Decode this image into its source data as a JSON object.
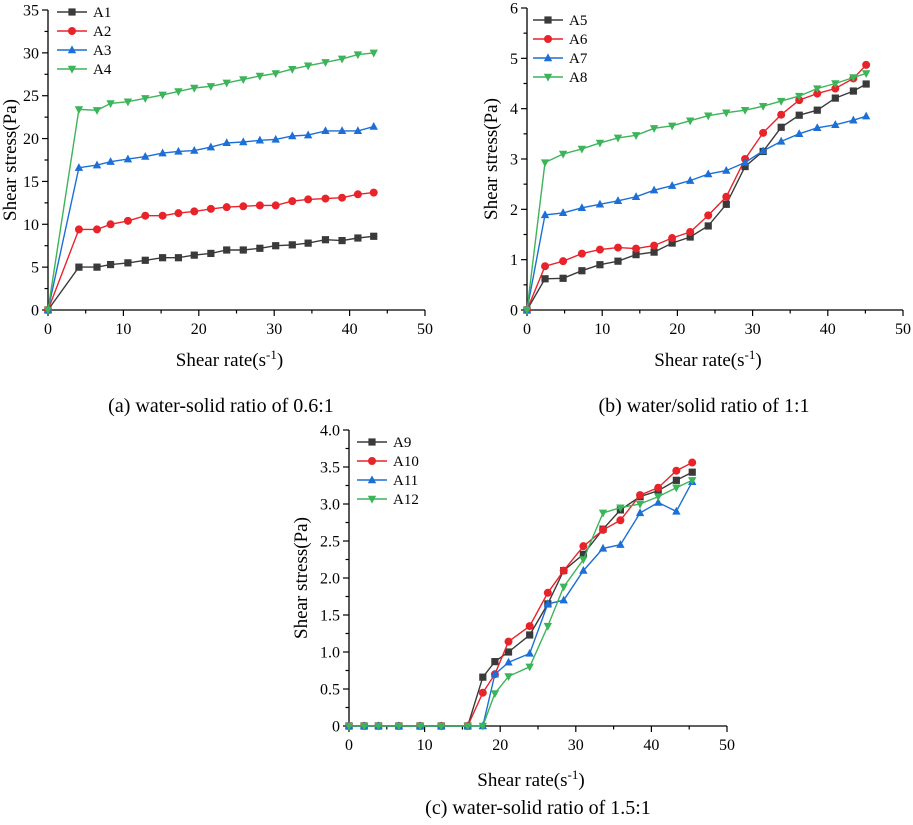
{
  "figure": {
    "captions": [
      "(a) water-solid ratio of 0.6:1",
      "(b) water/solid ratio of 1:1",
      "(c) water-solid ratio of 1.5:1"
    ]
  },
  "chart_data": [
    {
      "type": "line",
      "id": "a",
      "caption": "(a) water-solid ratio of 0.6:1",
      "xlabel": "Shear rate(s-1)",
      "ylabel": "Shear stress(Pa)",
      "xlim": [
        0,
        50
      ],
      "ylim": [
        0,
        35
      ],
      "xticks": [
        0,
        10,
        20,
        30,
        40,
        50
      ],
      "yticks": [
        0,
        5,
        10,
        15,
        20,
        25,
        30,
        35
      ],
      "ytick_labels": [
        "0",
        "5",
        "10",
        "15",
        "20",
        "25",
        "30",
        "35"
      ],
      "legend": "top-left",
      "x": [
        0,
        4.1,
        6.5,
        8.3,
        10.6,
        12.9,
        15.2,
        17.3,
        19.4,
        21.6,
        23.7,
        25.9,
        28.1,
        30.2,
        32.4,
        34.5,
        36.8,
        39.0,
        41.1,
        43.2
      ],
      "series": [
        {
          "name": "A1",
          "color": "#3a3a3a",
          "marker": "square",
          "values": [
            0,
            5.0,
            5.0,
            5.3,
            5.5,
            5.8,
            6.1,
            6.1,
            6.4,
            6.6,
            7.0,
            7.0,
            7.2,
            7.5,
            7.6,
            7.8,
            8.2,
            8.1,
            8.4,
            8.6
          ]
        },
        {
          "name": "A2",
          "color": "#e8232a",
          "marker": "circle",
          "values": [
            0,
            9.4,
            9.4,
            10.0,
            10.4,
            11.0,
            11.0,
            11.3,
            11.5,
            11.8,
            12.0,
            12.1,
            12.2,
            12.2,
            12.7,
            12.9,
            13.0,
            13.1,
            13.5,
            13.7
          ]
        },
        {
          "name": "A3",
          "color": "#1b6fd6",
          "marker": "triangle-up",
          "values": [
            0,
            16.6,
            16.9,
            17.3,
            17.6,
            17.9,
            18.3,
            18.5,
            18.6,
            19.0,
            19.5,
            19.6,
            19.8,
            19.9,
            20.3,
            20.4,
            20.9,
            20.9,
            20.9,
            21.4
          ]
        },
        {
          "name": "A4",
          "color": "#3cb45a",
          "marker": "triangle-down",
          "values": [
            0,
            23.4,
            23.3,
            24.1,
            24.3,
            24.7,
            25.1,
            25.5,
            25.9,
            26.1,
            26.5,
            26.9,
            27.3,
            27.6,
            28.1,
            28.5,
            28.9,
            29.3,
            29.8,
            30.0
          ]
        }
      ]
    },
    {
      "type": "line",
      "id": "b",
      "caption": "(b) water/solid ratio of 1:1",
      "xlabel": "Shear rate(s-1)",
      "ylabel": "Shear stress(Pa)",
      "xlim": [
        0,
        50
      ],
      "ylim": [
        0,
        6
      ],
      "xticks": [
        0,
        10,
        20,
        30,
        40,
        50
      ],
      "yticks": [
        0,
        1,
        2,
        3,
        4,
        5,
        6
      ],
      "ytick_labels": [
        "0",
        "1",
        "2",
        "3",
        "4",
        "5",
        "6"
      ],
      "legend": "top-left",
      "x": [
        0,
        2.4,
        4.8,
        7.3,
        9.7,
        12.1,
        14.5,
        16.9,
        19.3,
        21.7,
        24.1,
        26.5,
        29.0,
        31.4,
        33.8,
        36.2,
        38.6,
        41.0,
        43.4,
        45.1
      ],
      "series": [
        {
          "name": "A5",
          "color": "#3a3a3a",
          "marker": "square",
          "values": [
            0,
            0.62,
            0.63,
            0.78,
            0.9,
            0.97,
            1.1,
            1.15,
            1.33,
            1.45,
            1.67,
            2.1,
            2.85,
            3.15,
            3.63,
            3.87,
            3.97,
            4.21,
            4.35,
            4.49
          ]
        },
        {
          "name": "A6",
          "color": "#e8232a",
          "marker": "circle",
          "values": [
            0,
            0.87,
            0.97,
            1.12,
            1.2,
            1.24,
            1.22,
            1.28,
            1.43,
            1.55,
            1.88,
            2.25,
            3.0,
            3.52,
            3.88,
            4.17,
            4.3,
            4.4,
            4.6,
            4.87
          ]
        },
        {
          "name": "A7",
          "color": "#1b6fd6",
          "marker": "triangle-up",
          "values": [
            0,
            1.89,
            1.93,
            2.03,
            2.1,
            2.17,
            2.25,
            2.38,
            2.47,
            2.57,
            2.7,
            2.77,
            2.93,
            3.16,
            3.35,
            3.5,
            3.62,
            3.68,
            3.77,
            3.85
          ]
        },
        {
          "name": "A8",
          "color": "#3cb45a",
          "marker": "triangle-down",
          "values": [
            0,
            2.93,
            3.1,
            3.2,
            3.32,
            3.42,
            3.47,
            3.61,
            3.66,
            3.76,
            3.86,
            3.92,
            3.97,
            4.05,
            4.15,
            4.25,
            4.4,
            4.5,
            4.62,
            4.7
          ]
        }
      ]
    },
    {
      "type": "line",
      "id": "c",
      "caption": "(c) water-solid ratio of 1.5:1",
      "xlabel": "Shear rate(s-1)",
      "ylabel": "Shear stress(Pa)",
      "xlim": [
        0,
        50
      ],
      "ylim": [
        0,
        4.0
      ],
      "xticks": [
        0,
        10,
        20,
        30,
        40,
        50
      ],
      "yticks": [
        0,
        0.5,
        1.0,
        1.5,
        2.0,
        2.5,
        3.0,
        3.5,
        4.0
      ],
      "ytick_labels": [
        "0",
        "0.5",
        "1.0",
        "1.5",
        "2.0",
        "2.5",
        "3.0",
        "3.5",
        "4.0"
      ],
      "legend": "top-left",
      "x": [
        0,
        2.0,
        3.9,
        6.6,
        9.4,
        12.2,
        15.7,
        17.7,
        19.3,
        21.1,
        23.9,
        26.3,
        28.4,
        31.0,
        33.6,
        35.9,
        38.5,
        40.9,
        43.3,
        45.4
      ],
      "series": [
        {
          "name": "A9",
          "color": "#3a3a3a",
          "marker": "square",
          "values": [
            0,
            0,
            0,
            0,
            0,
            0,
            0,
            0.66,
            0.87,
            1.0,
            1.23,
            1.65,
            2.1,
            2.32,
            2.66,
            2.92,
            3.1,
            3.18,
            3.32,
            3.43
          ]
        },
        {
          "name": "A10",
          "color": "#e8232a",
          "marker": "circle",
          "values": [
            0,
            0,
            0,
            0,
            0,
            0,
            0,
            0.45,
            0.7,
            1.14,
            1.35,
            1.8,
            2.1,
            2.43,
            2.65,
            2.78,
            3.12,
            3.22,
            3.45,
            3.56
          ]
        },
        {
          "name": "A11",
          "color": "#1b6fd6",
          "marker": "triangle-up",
          "values": [
            0,
            0,
            0,
            0,
            0,
            0,
            0,
            0,
            0.7,
            0.86,
            0.98,
            1.65,
            1.7,
            2.1,
            2.4,
            2.45,
            2.88,
            3.02,
            2.9,
            3.3
          ]
        },
        {
          "name": "A12",
          "color": "#3cb45a",
          "marker": "triangle-down",
          "values": [
            0,
            0,
            0,
            0,
            0,
            0,
            0,
            0,
            0.44,
            0.67,
            0.8,
            1.35,
            1.88,
            2.25,
            2.88,
            2.95,
            3.0,
            3.1,
            3.22,
            3.32
          ]
        }
      ]
    }
  ]
}
